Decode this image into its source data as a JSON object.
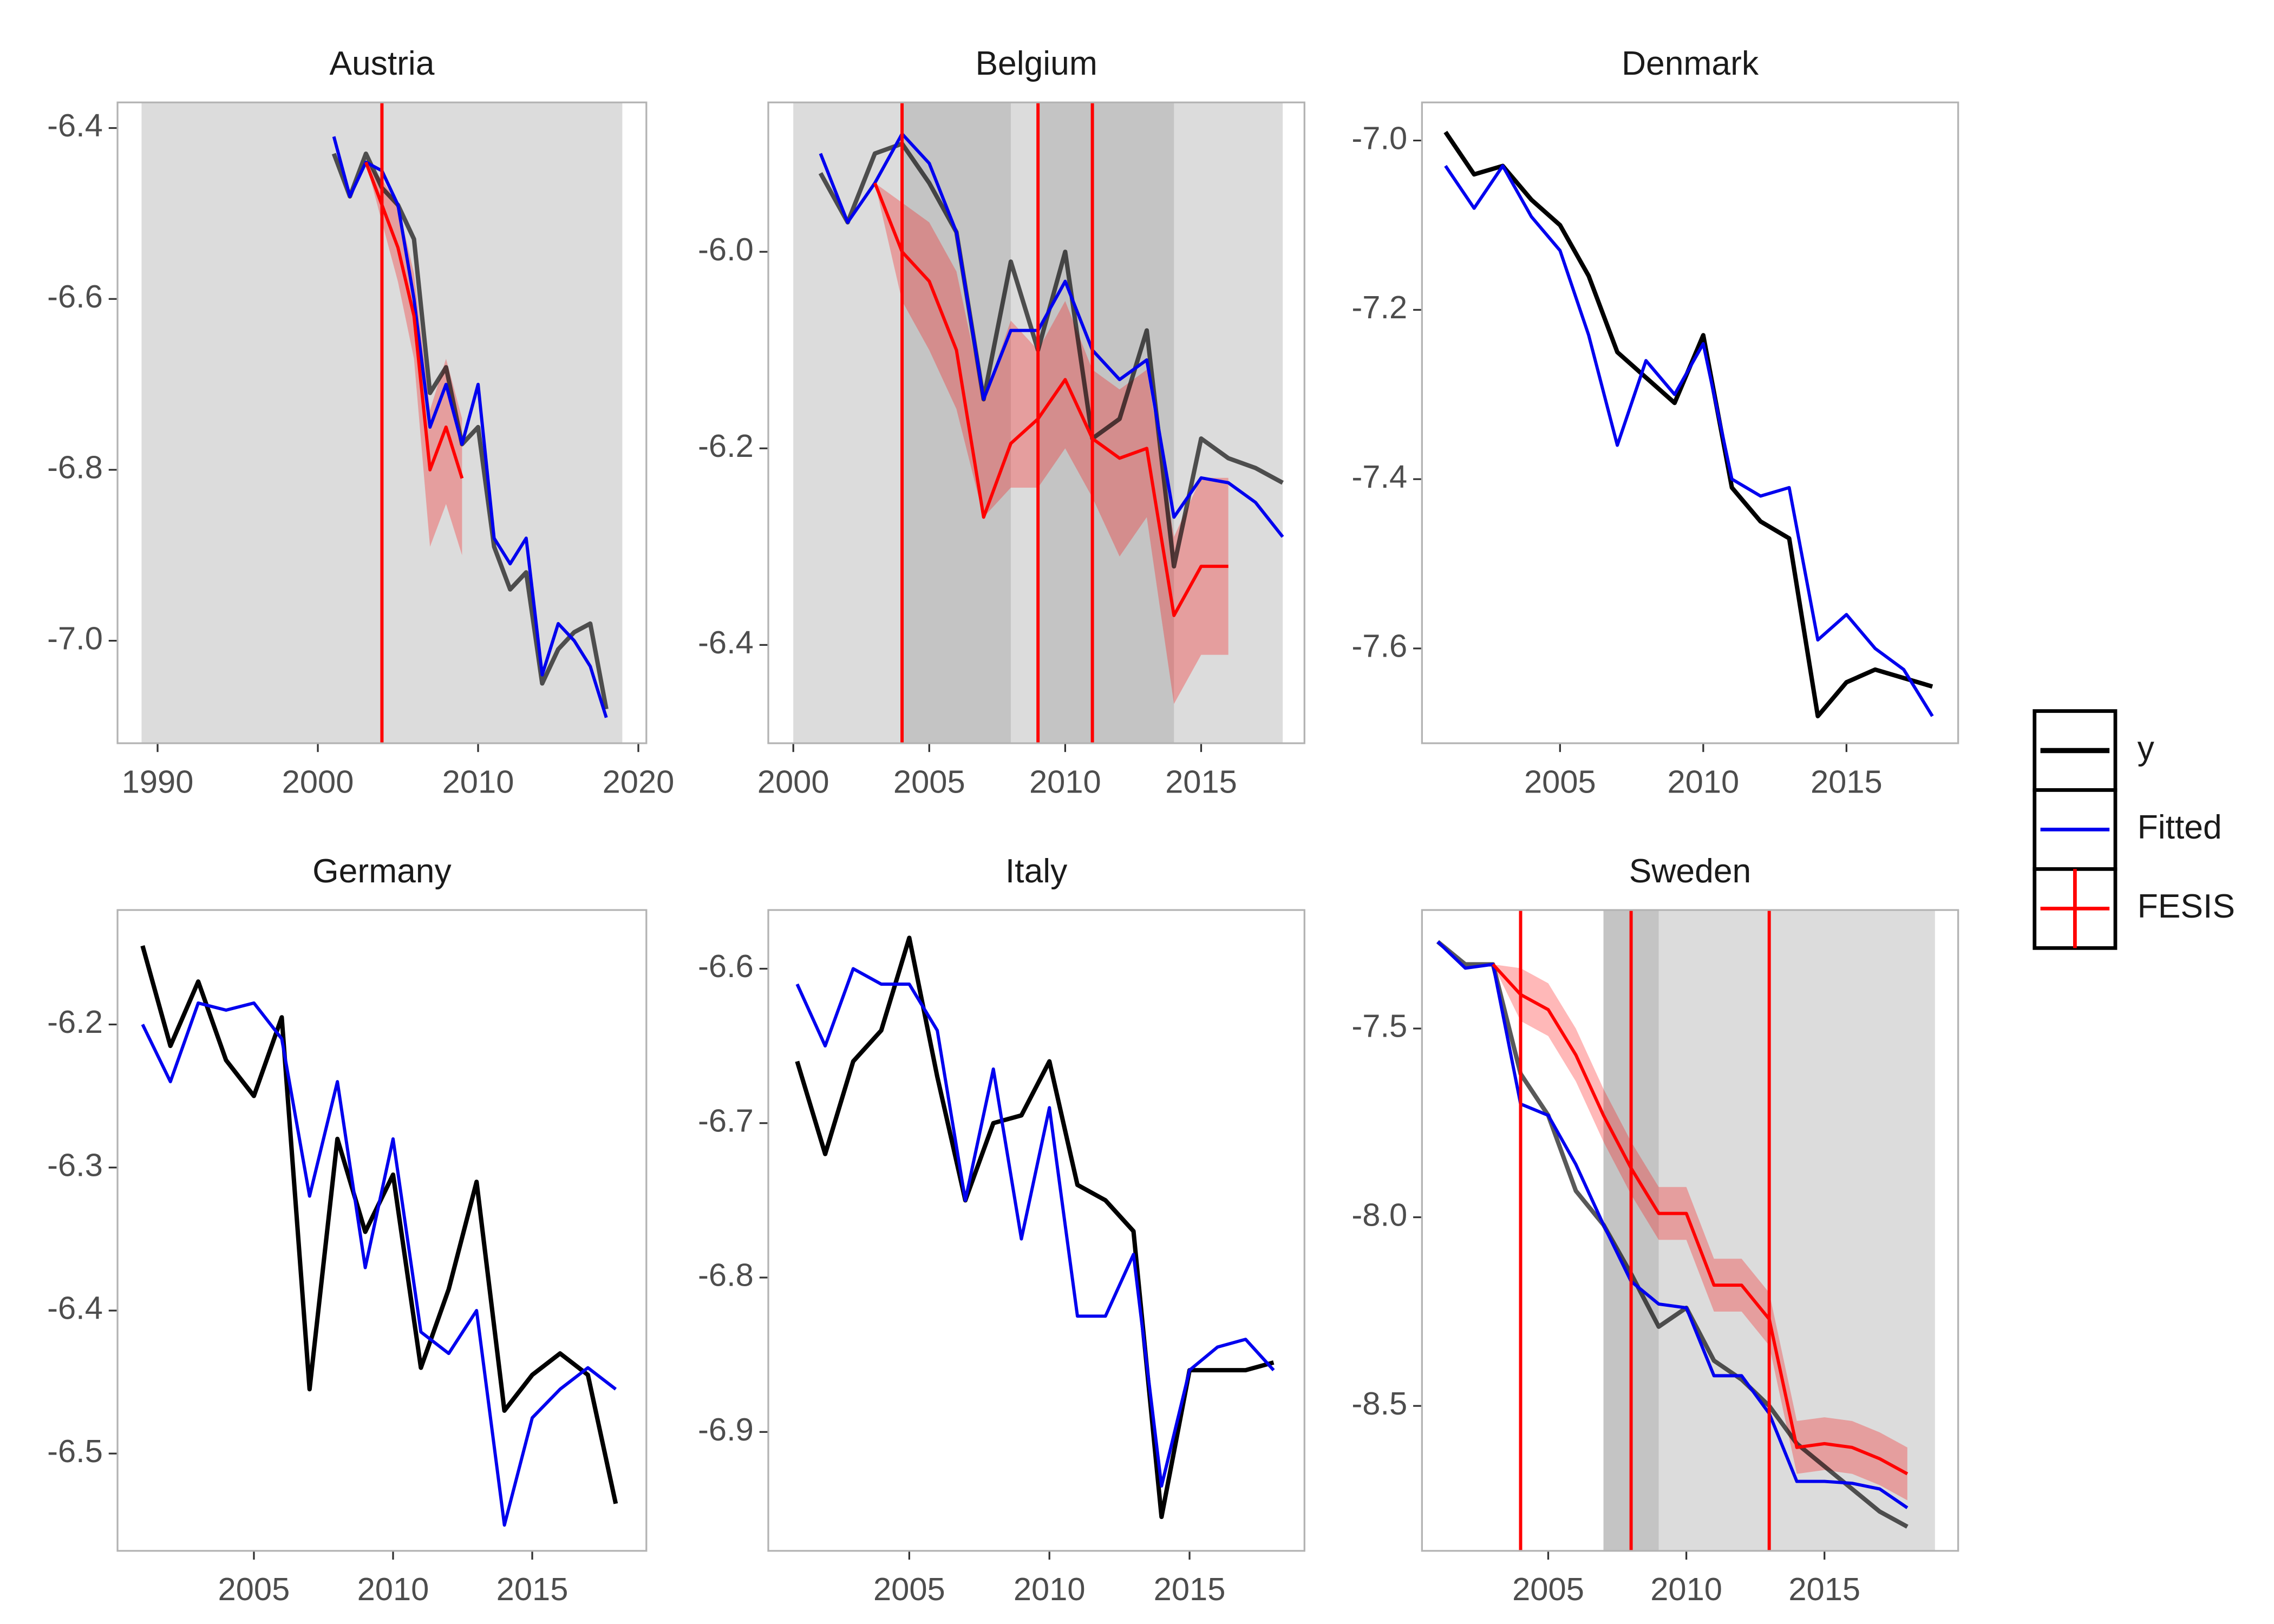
{
  "chart_data": [
    {
      "type": "line",
      "title": "Austria",
      "x": [
        2001,
        2002,
        2003,
        2004,
        2005,
        2006,
        2007,
        2008,
        2009,
        2010,
        2011,
        2012,
        2013,
        2014,
        2015,
        2016,
        2017,
        2018
      ],
      "xlim": [
        1987.5,
        2020.5
      ],
      "xticks": [
        1990,
        2000,
        2010,
        2020
      ],
      "ylim": [
        -7.12,
        -6.37
      ],
      "yticks": [
        -6.4,
        -6.6,
        -6.8,
        {
          "value": -7.0,
          "label": "-7.0"
        }
      ],
      "shaded": [
        {
          "range": [
            1989,
            2019
          ],
          "color": "#dcdcdc"
        }
      ],
      "breaks": [
        2004
      ],
      "series": [
        {
          "name": "y",
          "color": "#000000",
          "values": [
            -6.43,
            -6.48,
            -6.43,
            -6.47,
            -6.49,
            -6.53,
            -6.71,
            -6.68,
            -6.77,
            -6.75,
            -6.89,
            -6.94,
            -6.92,
            -7.05,
            -7.01,
            -6.99,
            -6.98,
            -7.08
          ]
        },
        {
          "name": "Fitted",
          "color": "#0000ee",
          "values": [
            -6.41,
            -6.48,
            -6.44,
            -6.45,
            -6.49,
            -6.6,
            -6.75,
            -6.7,
            -6.77,
            -6.7,
            -6.88,
            -6.91,
            -6.88,
            -7.04,
            -6.98,
            -7.0,
            -7.03,
            -7.09
          ]
        },
        {
          "name": "FESIS",
          "color": "#ff0000",
          "values": [
            null,
            null,
            -6.44,
            -6.49,
            -6.54,
            -6.62,
            -6.8,
            -6.75,
            -6.81,
            null,
            null,
            null,
            null,
            null,
            null,
            null,
            null,
            null
          ],
          "lower": [
            null,
            null,
            -6.44,
            -6.51,
            -6.58,
            -6.67,
            -6.89,
            -6.84,
            -6.9,
            null,
            null,
            null,
            null,
            null,
            null,
            null,
            null,
            null
          ],
          "upper": [
            null,
            null,
            -6.44,
            -6.46,
            -6.49,
            -6.57,
            -6.73,
            -6.67,
            -6.74,
            null,
            null,
            null,
            null,
            null,
            null,
            null,
            null,
            null
          ]
        }
      ]
    },
    {
      "type": "line",
      "title": "Belgium",
      "x": [
        2001,
        2002,
        2003,
        2004,
        2005,
        2006,
        2007,
        2008,
        2009,
        2010,
        2011,
        2012,
        2013,
        2014,
        2015,
        2016,
        2017,
        2018
      ],
      "xlim": [
        1999.08,
        2018.8
      ],
      "xticks": [
        2000,
        2005,
        2010,
        2015
      ],
      "ylim": [
        -6.5,
        -5.848
      ],
      "yticks": [
        {
          "value": -6.0,
          "label": "-6.0"
        },
        -6.2,
        -6.4
      ],
      "shaded": [
        {
          "range": [
            2000,
            2018
          ],
          "color": "#dcdcdc"
        },
        {
          "range": [
            2004,
            2008
          ],
          "color": "#c4c4c4"
        },
        {
          "range": [
            2009,
            2014
          ],
          "color": "#c4c4c4"
        }
      ],
      "breaks": [
        2004,
        2009,
        2011
      ],
      "series": [
        {
          "name": "y",
          "color": "#000000",
          "values": [
            -5.92,
            -5.97,
            -5.9,
            -5.89,
            -5.93,
            -5.98,
            -6.15,
            -6.01,
            -6.1,
            -6.0,
            -6.19,
            -6.17,
            -6.08,
            -6.32,
            -6.19,
            -6.21,
            -6.22,
            -6.235
          ]
        },
        {
          "name": "Fitted",
          "color": "#0000ee",
          "values": [
            -5.9,
            -5.97,
            -5.93,
            -5.88,
            -5.91,
            -5.98,
            -6.15,
            -6.08,
            -6.08,
            -6.03,
            -6.1,
            -6.13,
            -6.11,
            -6.27,
            -6.23,
            -6.235,
            -6.255,
            -6.29
          ]
        },
        {
          "name": "FESIS",
          "color": "#ff0000",
          "values": [
            null,
            null,
            -5.93,
            -6.0,
            -6.03,
            -6.1,
            -6.27,
            -6.195,
            -6.17,
            -6.13,
            -6.19,
            -6.21,
            -6.2,
            -6.37,
            -6.32,
            -6.32,
            null,
            null
          ],
          "lower": [
            null,
            null,
            -5.93,
            -6.05,
            -6.1,
            -6.16,
            -6.27,
            -6.24,
            -6.24,
            -6.2,
            -6.25,
            -6.31,
            -6.27,
            -6.46,
            -6.41,
            -6.41,
            null,
            null
          ],
          "upper": [
            null,
            null,
            -5.93,
            -5.95,
            -5.97,
            -6.02,
            -6.15,
            -6.07,
            -6.1,
            -6.05,
            -6.12,
            -6.14,
            -6.12,
            -6.29,
            -6.23,
            -6.23,
            null,
            null
          ]
        }
      ]
    },
    {
      "type": "line",
      "title": "Denmark",
      "x": [
        2001,
        2002,
        2003,
        2004,
        2005,
        2006,
        2007,
        2008,
        2009,
        2010,
        2011,
        2012,
        2013,
        2014,
        2015,
        2016,
        2017,
        2018
      ],
      "xlim": [
        2000.18,
        2018.9
      ],
      "xticks": [
        2005,
        2010,
        2015
      ],
      "ylim": [
        -7.712,
        -6.955
      ],
      "yticks": [
        {
          "value": -7.0,
          "label": "-7.0"
        },
        -7.2,
        -7.4,
        -7.6
      ],
      "series": [
        {
          "name": "y",
          "color": "#000000",
          "values": [
            -6.99,
            -7.04,
            -7.03,
            -7.07,
            -7.1,
            -7.16,
            -7.25,
            -7.28,
            -7.31,
            -7.23,
            -7.41,
            -7.45,
            -7.47,
            -7.68,
            -7.64,
            -7.625,
            -7.635,
            -7.645
          ]
        },
        {
          "name": "Fitted",
          "color": "#0000ee",
          "values": [
            -7.03,
            -7.08,
            -7.03,
            -7.09,
            -7.13,
            -7.23,
            -7.36,
            -7.26,
            -7.3,
            -7.24,
            -7.4,
            -7.42,
            -7.41,
            -7.59,
            -7.56,
            -7.6,
            -7.625,
            -7.68
          ]
        }
      ]
    },
    {
      "type": "line",
      "title": "Germany",
      "x": [
        2001,
        2002,
        2003,
        2004,
        2005,
        2006,
        2007,
        2008,
        2009,
        2010,
        2011,
        2012,
        2013,
        2014,
        2015,
        2016,
        2017,
        2018
      ],
      "xlim": [
        2000.1,
        2019.1
      ],
      "xticks": [
        2005,
        2010,
        2015
      ],
      "ylim": [
        -6.568,
        -6.12
      ],
      "yticks": [
        -6.2,
        -6.3,
        -6.4,
        -6.5
      ],
      "series": [
        {
          "name": "y",
          "color": "#000000",
          "values": [
            -6.145,
            -6.215,
            -6.17,
            -6.225,
            -6.25,
            -6.195,
            -6.455,
            -6.28,
            -6.345,
            -6.305,
            -6.44,
            -6.385,
            -6.31,
            -6.47,
            -6.445,
            -6.43,
            -6.445,
            -6.535
          ]
        },
        {
          "name": "Fitted",
          "color": "#0000ee",
          "values": [
            -6.2,
            -6.24,
            -6.185,
            -6.19,
            -6.185,
            -6.21,
            -6.32,
            -6.24,
            -6.37,
            -6.28,
            -6.415,
            -6.43,
            -6.4,
            -6.55,
            -6.475,
            -6.455,
            -6.44,
            -6.455
          ]
        }
      ]
    },
    {
      "type": "line",
      "title": "Italy",
      "x": [
        2001,
        2002,
        2003,
        2004,
        2005,
        2006,
        2007,
        2008,
        2009,
        2010,
        2011,
        2012,
        2013,
        2014,
        2015,
        2016,
        2017,
        2018
      ],
      "xlim": [
        1999.97,
        2019.1
      ],
      "xticks": [
        2005,
        2010,
        2015
      ],
      "ylim": [
        -6.977,
        -6.562
      ],
      "yticks": [
        -6.6,
        -6.7,
        -6.8,
        -6.9
      ],
      "series": [
        {
          "name": "y",
          "color": "#000000",
          "values": [
            -6.66,
            -6.72,
            -6.66,
            -6.64,
            -6.58,
            -6.67,
            -6.75,
            -6.7,
            -6.695,
            -6.66,
            -6.74,
            -6.75,
            -6.77,
            -6.955,
            -6.86,
            -6.86,
            -6.86,
            -6.855
          ]
        },
        {
          "name": "Fitted",
          "color": "#0000ee",
          "values": [
            -6.61,
            -6.65,
            -6.6,
            -6.61,
            -6.61,
            -6.64,
            -6.75,
            -6.665,
            -6.775,
            -6.69,
            -6.825,
            -6.825,
            -6.785,
            -6.935,
            -6.86,
            -6.845,
            -6.84,
            -6.86
          ]
        }
      ]
    },
    {
      "type": "line",
      "title": "Sweden",
      "x": [
        2001,
        2002,
        2003,
        2004,
        2005,
        2006,
        2007,
        2008,
        2009,
        2010,
        2011,
        2012,
        2013,
        2014,
        2015,
        2016,
        2017,
        2018
      ],
      "xlim": [
        2000.43,
        2019.84
      ],
      "xticks": [
        2005,
        2010,
        2015
      ],
      "ylim": [
        -8.884,
        -7.186
      ],
      "yticks": [
        -7.5,
        {
          "value": -8.0,
          "label": "-8.0"
        },
        -8.5
      ],
      "shaded": [
        {
          "range": [
            2007,
            2019
          ],
          "color": "#dcdcdc"
        },
        {
          "range": [
            2007,
            2009
          ],
          "color": "#c4c4c4"
        }
      ],
      "breaks": [
        2004,
        2008,
        2013
      ],
      "series": [
        {
          "name": "y",
          "color": "#000000",
          "values": [
            -7.27,
            -7.33,
            -7.33,
            -7.62,
            -7.73,
            -7.93,
            -8.02,
            -8.15,
            -8.29,
            -8.24,
            -8.38,
            -8.43,
            -8.5,
            -8.6,
            -8.66,
            -8.72,
            -8.78,
            -8.82
          ]
        },
        {
          "name": "Fitted",
          "color": "#0000ee",
          "values": [
            -7.27,
            -7.34,
            -7.33,
            -7.7,
            -7.73,
            -7.86,
            -8.02,
            -8.17,
            -8.23,
            -8.24,
            -8.42,
            -8.42,
            -8.52,
            -8.7,
            -8.7,
            -8.705,
            -8.72,
            -8.77
          ]
        },
        {
          "name": "FESIS",
          "color": "#ff0000",
          "values": [
            null,
            null,
            -7.33,
            -7.41,
            -7.45,
            -7.57,
            -7.73,
            -7.87,
            -7.99,
            -7.99,
            -8.18,
            -8.18,
            -8.27,
            -8.61,
            -8.6,
            -8.61,
            -8.64,
            -8.68
          ],
          "lower": [
            null,
            null,
            -7.33,
            -7.48,
            -7.52,
            -7.64,
            -7.8,
            -7.94,
            -8.06,
            -8.06,
            -8.25,
            -8.25,
            -8.34,
            -8.68,
            -8.67,
            -8.68,
            -8.71,
            -8.75
          ],
          "upper": [
            null,
            null,
            -7.33,
            -7.34,
            -7.38,
            -7.5,
            -7.66,
            -7.8,
            -7.92,
            -7.92,
            -8.11,
            -8.11,
            -8.2,
            -8.54,
            -8.53,
            -8.54,
            -8.57,
            -8.61
          ]
        }
      ]
    }
  ]
}
